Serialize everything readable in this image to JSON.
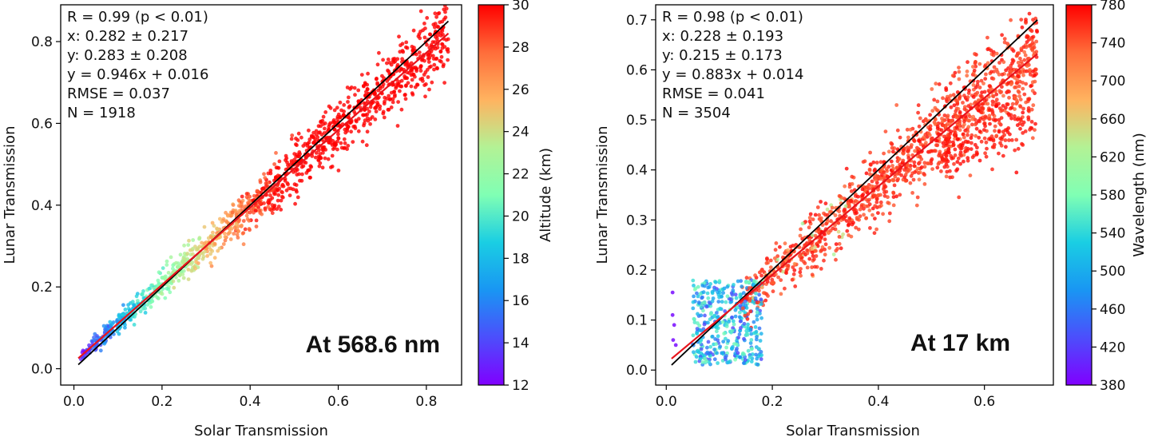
{
  "chart_data": [
    {
      "type": "scatter",
      "xlabel": "Solar Transmission",
      "ylabel": "Lunar Transmission",
      "xlim": [
        -0.03,
        0.88
      ],
      "ylim": [
        -0.04,
        0.89
      ],
      "xticks": [
        "0.0",
        "0.2",
        "0.4",
        "0.6",
        "0.8"
      ],
      "yticks": [
        "0.0",
        "0.2",
        "0.4",
        "0.6",
        "0.8"
      ],
      "colorbar": {
        "label": "Altitude (km)",
        "range": [
          12,
          30
        ],
        "ticks": [
          "12",
          "14",
          "16",
          "18",
          "20",
          "22",
          "24",
          "26",
          "28",
          "30"
        ],
        "colormap": "rainbow"
      },
      "stats": [
        "R = 0.99 (p < 0.01)",
        "x: 0.282 ± 0.217",
        "y: 0.283 ± 0.208",
        "y = 0.946x + 0.016",
        "RMSE = 0.037",
        "N = 1918"
      ],
      "annotation": "At 568.6 nm",
      "fit_line": {
        "slope": 0.946,
        "intercept": 0.016,
        "color": "#e8141c"
      },
      "one_to_one_line": {
        "color": "#000000"
      },
      "point_count": 1918,
      "point_distribution": {
        "x_mean": 0.282,
        "x_std": 0.217,
        "x_range": [
          0.01,
          0.85
        ]
      },
      "grid": false
    },
    {
      "type": "scatter",
      "xlabel": "Solar Transmission",
      "ylabel": "Lunar Transmission",
      "xlim": [
        -0.02,
        0.73
      ],
      "ylim": [
        -0.03,
        0.73
      ],
      "xticks": [
        "0.0",
        "0.2",
        "0.4",
        "0.6"
      ],
      "yticks": [
        "0.0",
        "0.1",
        "0.2",
        "0.3",
        "0.4",
        "0.5",
        "0.6",
        "0.7"
      ],
      "colorbar": {
        "label": "Wavelength (nm)",
        "range": [
          380,
          780
        ],
        "ticks": [
          "380",
          "420",
          "460",
          "500",
          "540",
          "580",
          "620",
          "660",
          "700",
          "740",
          "780"
        ],
        "colormap": "rainbow"
      },
      "stats": [
        "R = 0.98 (p < 0.01)",
        "x: 0.228 ± 0.193",
        "y: 0.215 ± 0.173",
        "y = 0.883x + 0.014",
        "RMSE = 0.041",
        "N = 3504"
      ],
      "annotation": "At 17 km",
      "fit_line": {
        "slope": 0.883,
        "intercept": 0.014,
        "color": "#e8141c"
      },
      "one_to_one_line": {
        "color": "#000000"
      },
      "point_count": 3504,
      "point_distribution": {
        "x_mean": 0.228,
        "x_std": 0.193,
        "x_range": [
          0.01,
          0.7
        ]
      },
      "grid": false
    }
  ]
}
